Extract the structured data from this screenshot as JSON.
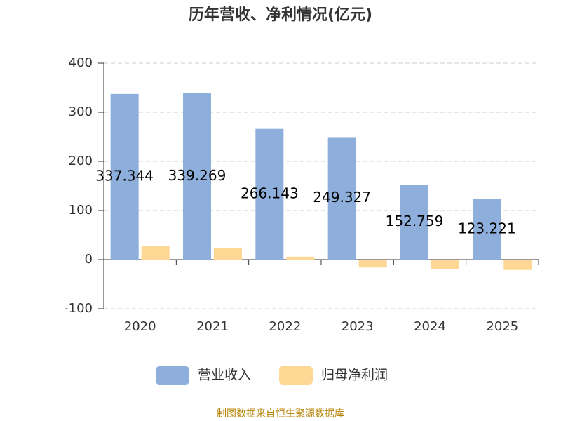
{
  "chart_data": {
    "type": "bar",
    "title": "历年营收、净利情况(亿元)",
    "categories": [
      "2020",
      "2021",
      "2022",
      "2023",
      "2024",
      "2025"
    ],
    "series": [
      {
        "name": "营业收入",
        "color": "#8eaedb",
        "values": [
          337.344,
          339.269,
          266.143,
          249.327,
          152.759,
          123.221
        ],
        "show_labels": true
      },
      {
        "name": "归母净利润",
        "color": "#fed794",
        "values": [
          27,
          23,
          6,
          -16,
          -19,
          -21
        ],
        "show_labels": false
      }
    ],
    "ylim": [
      -100,
      400
    ],
    "yticks": [
      -100,
      0,
      100,
      200,
      300,
      400
    ],
    "grid": true,
    "legend": "bottom",
    "source": "制图数据来自恒生聚源数据库"
  }
}
